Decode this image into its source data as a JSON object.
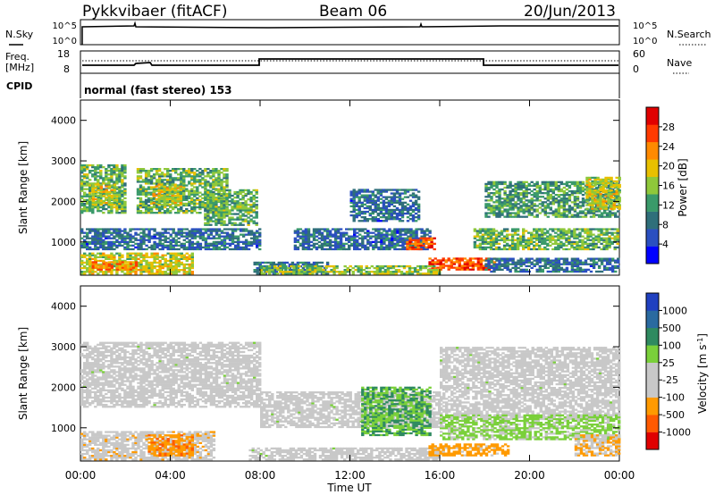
{
  "header": {
    "station": "Pykkvibaer (fitACF)",
    "beam": "Beam 06",
    "date": "20/Jun/2013"
  },
  "top_panels": {
    "nsky_label": "N.Sky",
    "nsearch_label": "N.Search",
    "nsky_ticks": [
      "10^5",
      "10^0"
    ],
    "nsearch_ticks": [
      "10^5",
      "10^0"
    ],
    "freq_label": "Freq.",
    "freq_unit": "[MHz]",
    "freq_ticks": [
      "18",
      "8"
    ],
    "nave_label": "Nave",
    "nave_ticks": [
      "60",
      "0"
    ],
    "cpid_label": "CPID",
    "cpid_value": "normal (fast stereo) 153"
  },
  "colors": {
    "power_scale": [
      "#0000ff",
      "#2a4fc0",
      "#2f6f7a",
      "#3a9a6a",
      "#8fc83a",
      "#e8c000",
      "#ff8a00",
      "#ff3a00",
      "#e00000"
    ],
    "velocity_scale": [
      "#e00000",
      "#ff5a00",
      "#ff9a00",
      "#c8c8c8",
      "#c8c8c8",
      "#7ad03a",
      "#2f8a60",
      "#2a6aa0",
      "#2040c0"
    ],
    "ground_scatter": "#c8c8c8"
  },
  "chart_data": [
    {
      "type": "heatmap",
      "name": "Power",
      "ylabel": "Slant Range [km]",
      "yticks": [
        "4000",
        "3000",
        "2000",
        "1000"
      ],
      "ylim": [
        180,
        4500
      ],
      "colorbar_label": "Power [dB]",
      "colorbar_ticks": [
        "28",
        "24",
        "20",
        "16",
        "12",
        "8",
        "4"
      ],
      "colorbar_range": [
        0,
        32
      ],
      "regions": [
        {
          "t0": 0.0,
          "t1": 2.0,
          "r0": 1700,
          "r1": 2900,
          "v": 14
        },
        {
          "t0": 0.5,
          "t1": 1.5,
          "r0": 1900,
          "r1": 2400,
          "v": 18
        },
        {
          "t0": 2.5,
          "t1": 6.5,
          "r0": 1700,
          "r1": 2800,
          "v": 14
        },
        {
          "t0": 3.2,
          "t1": 4.5,
          "r0": 1900,
          "r1": 2400,
          "v": 18
        },
        {
          "t0": 5.5,
          "t1": 7.8,
          "r0": 1400,
          "r1": 2300,
          "v": 14
        },
        {
          "t0": 0.0,
          "t1": 5.0,
          "r0": 200,
          "r1": 700,
          "v": 18
        },
        {
          "t0": 0.5,
          "t1": 2.5,
          "r0": 300,
          "r1": 500,
          "v": 24
        },
        {
          "t0": 0.0,
          "t1": 8.0,
          "r0": 800,
          "r1": 1300,
          "v": 8
        },
        {
          "t0": 7.7,
          "t1": 11.0,
          "r0": 200,
          "r1": 500,
          "v": 8
        },
        {
          "t0": 9.5,
          "t1": 15.5,
          "r0": 800,
          "r1": 1300,
          "v": 8
        },
        {
          "t0": 12.0,
          "t1": 15.0,
          "r0": 1500,
          "r1": 2300,
          "v": 8
        },
        {
          "t0": 14.5,
          "t1": 15.7,
          "r0": 800,
          "r1": 1100,
          "v": 26
        },
        {
          "t0": 15.5,
          "t1": 18.5,
          "r0": 300,
          "r1": 600,
          "v": 26
        },
        {
          "t0": 17.5,
          "t1": 24.0,
          "r0": 800,
          "r1": 1300,
          "v": 14
        },
        {
          "t0": 18.0,
          "t1": 24.0,
          "r0": 1600,
          "r1": 2500,
          "v": 12
        },
        {
          "t0": 22.5,
          "t1": 24.0,
          "r0": 1800,
          "r1": 2600,
          "v": 18
        },
        {
          "t0": 18.0,
          "t1": 24.0,
          "r0": 250,
          "r1": 600,
          "v": 8
        },
        {
          "t0": 8.0,
          "t1": 16.0,
          "r0": 200,
          "r1": 400,
          "v": 16
        }
      ]
    },
    {
      "type": "heatmap",
      "name": "Velocity",
      "ylabel": "Slant Range [km]",
      "yticks": [
        "4000",
        "3000",
        "2000",
        "1000"
      ],
      "ylim": [
        180,
        4500
      ],
      "colorbar_label": "Velocity [m s^-1]",
      "colorbar_ticks": [
        "1000",
        "500",
        "100",
        "25",
        "-25",
        "-100",
        "-500",
        "-1000"
      ],
      "colorbar_range": [
        -1200,
        1200
      ],
      "regions": [
        {
          "t0": 0.0,
          "t1": 8.0,
          "r0": 1500,
          "r1": 3100,
          "v": 0
        },
        {
          "t0": 8.0,
          "t1": 16.0,
          "r0": 1000,
          "r1": 1900,
          "v": 0
        },
        {
          "t0": 16.0,
          "t1": 24.0,
          "r0": 1200,
          "r1": 3000,
          "v": 0
        },
        {
          "t0": 0.0,
          "t1": 6.0,
          "r0": 200,
          "r1": 900,
          "v": -300
        },
        {
          "t0": 3.0,
          "t1": 5.0,
          "r0": 300,
          "r1": 800,
          "v": -600
        },
        {
          "t0": 7.5,
          "t1": 16.0,
          "r0": 200,
          "r1": 500,
          "v": 0
        },
        {
          "t0": 12.5,
          "t1": 15.5,
          "r0": 800,
          "r1": 2000,
          "v": 400
        },
        {
          "t0": 15.5,
          "t1": 19.0,
          "r0": 300,
          "r1": 600,
          "v": -500
        },
        {
          "t0": 16.0,
          "t1": 24.0,
          "r0": 700,
          "r1": 1300,
          "v": 200
        },
        {
          "t0": 22.0,
          "t1": 24.0,
          "r0": 300,
          "r1": 800,
          "v": -400
        }
      ]
    }
  ],
  "x_axis": {
    "label": "Time UT",
    "ticks": [
      "00:00",
      "04:00",
      "08:00",
      "12:00",
      "16:00",
      "20:00",
      "00:00"
    ],
    "range_hours": [
      0,
      24
    ]
  }
}
